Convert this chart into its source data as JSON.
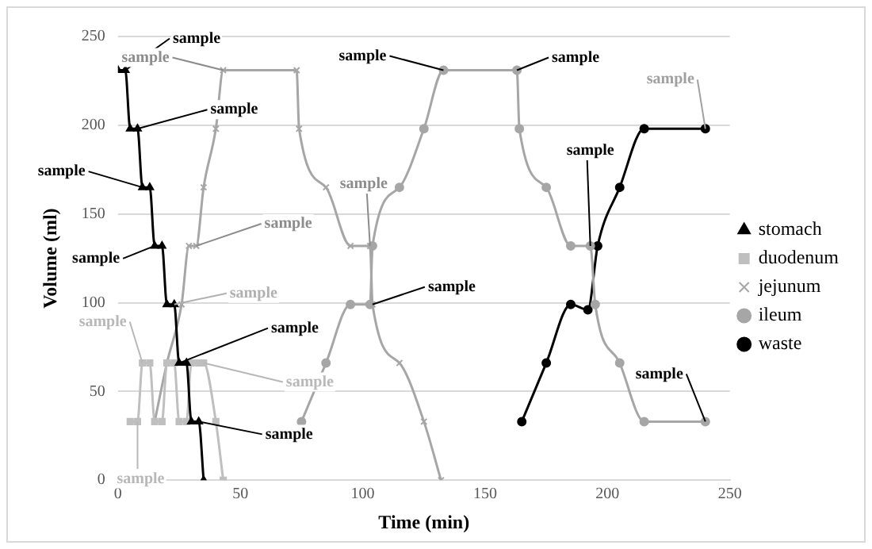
{
  "chart_data": {
    "type": "line",
    "xlabel": "Time (min)",
    "ylabel": "Volume (ml)",
    "xlim": [
      0,
      250
    ],
    "xticks": [
      0,
      50,
      100,
      150,
      200,
      250
    ],
    "ylim": [
      0,
      250
    ],
    "yticks": [
      0,
      50,
      100,
      150,
      200,
      250
    ],
    "grid": "y",
    "legend": "right",
    "series": [
      {
        "name": "stomach",
        "color": "#000000",
        "marker": "triangle",
        "x": [
          0,
          3,
          5,
          8,
          10,
          13,
          15,
          18,
          20,
          23,
          25,
          28,
          30,
          33,
          35
        ],
        "values": [
          231,
          231,
          198,
          198,
          165,
          165,
          132,
          132,
          99,
          99,
          66,
          66,
          33,
          33,
          0
        ]
      },
      {
        "name": "duodenum",
        "color": "#bfbfbf",
        "marker": "square",
        "x": [
          5,
          8,
          10,
          13,
          15,
          18,
          20,
          23,
          25,
          28,
          30,
          33,
          35,
          40,
          43
        ],
        "values": [
          33,
          33,
          66,
          66,
          33,
          33,
          66,
          66,
          33,
          33,
          66,
          66,
          66,
          33,
          0
        ]
      },
      {
        "name": "jejunum",
        "color": "#a6a6a6",
        "marker": "cross",
        "x": [
          15,
          20,
          26,
          29,
          32,
          35,
          40,
          43,
          73,
          74,
          85,
          95,
          103,
          104,
          115,
          125,
          132
        ],
        "values": [
          33,
          66,
          99,
          132,
          132,
          165,
          198,
          231,
          231,
          198,
          165,
          132,
          132,
          99,
          66,
          33,
          0
        ]
      },
      {
        "name": "ileum",
        "color": "#a6a6a6",
        "marker": "circle",
        "x": [
          75,
          85,
          95,
          103,
          104,
          115,
          125,
          133,
          163,
          164,
          175,
          185,
          193,
          195,
          205,
          215,
          240
        ],
        "values": [
          33,
          66,
          99,
          99,
          132,
          165,
          198,
          231,
          231,
          198,
          165,
          132,
          132,
          99,
          66,
          33,
          33
        ]
      },
      {
        "name": "waste",
        "color": "#000000",
        "marker": "circle",
        "x": [
          165,
          175,
          185,
          192,
          196,
          205,
          215,
          240
        ],
        "values": [
          33,
          66,
          99,
          96,
          132,
          165,
          198,
          198
        ]
      }
    ],
    "annotations": [
      {
        "text": "sample",
        "x": 3,
        "y": 231
      },
      {
        "text": "sample",
        "x": 8,
        "y": 198
      },
      {
        "text": "sample",
        "x": 10,
        "y": 165
      },
      {
        "text": "sample",
        "x": 15,
        "y": 132
      },
      {
        "text": "sample",
        "x": 32,
        "y": 132
      },
      {
        "text": "sample",
        "x": 23,
        "y": 99
      },
      {
        "text": "sample",
        "x": 10,
        "y": 66
      },
      {
        "text": "sample",
        "x": 25,
        "y": 66
      },
      {
        "text": "sample",
        "x": 35,
        "y": 66
      },
      {
        "text": "sample",
        "x": 8,
        "y": 33
      },
      {
        "text": "sample",
        "x": 33,
        "y": 33
      },
      {
        "text": "sample",
        "x": 43,
        "y": 231
      },
      {
        "text": "sample",
        "x": 133,
        "y": 231
      },
      {
        "text": "sample",
        "x": 163,
        "y": 231
      },
      {
        "text": "sample",
        "x": 103,
        "y": 132
      },
      {
        "text": "sample",
        "x": 104,
        "y": 99
      },
      {
        "text": "sample",
        "x": 193,
        "y": 132
      },
      {
        "text": "sample",
        "x": 240,
        "y": 198
      },
      {
        "text": "sample",
        "x": 240,
        "y": 33
      }
    ]
  }
}
